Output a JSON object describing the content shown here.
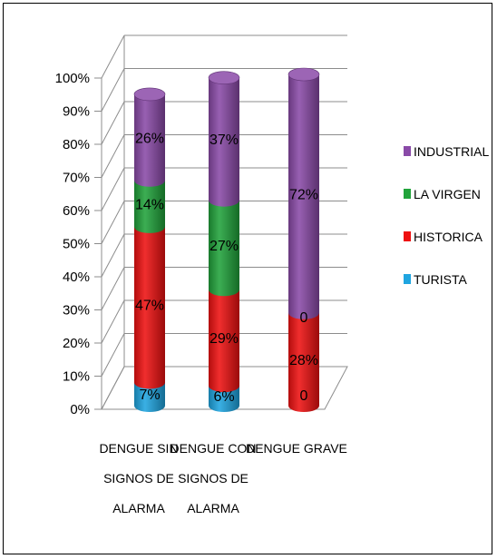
{
  "chart_data": {
    "type": "bar",
    "stacked": true,
    "three_d": true,
    "categories": [
      [
        "DENGUE SIN",
        "SIGNOS DE",
        "ALARMA"
      ],
      [
        "DENGUE CON",
        "SIGNOS DE",
        "ALARMA"
      ],
      [
        "DENGUE GRAVE"
      ]
    ],
    "series": [
      {
        "name": "TURISTA",
        "color": "#1fa5e0",
        "values": [
          7,
          6,
          0
        ],
        "labels": [
          "7%",
          "6%",
          "0"
        ]
      },
      {
        "name": "HISTORICA",
        "color": "#ee1111",
        "values": [
          47,
          29,
          28
        ],
        "labels": [
          "47%",
          "29%",
          "28%"
        ]
      },
      {
        "name": "LA VIRGEN",
        "color": "#21a33b",
        "values": [
          14,
          27,
          0
        ],
        "labels": [
          "14%",
          "27%",
          "0"
        ]
      },
      {
        "name": "INDUSTRIAL",
        "color": "#8a4aa8",
        "values": [
          26,
          37,
          72
        ],
        "labels": [
          "26%",
          "37%",
          "72%"
        ]
      }
    ],
    "legend_order": [
      "INDUSTRIAL",
      "LA VIRGEN",
      "HISTORICA",
      "TURISTA"
    ],
    "yticks": [
      "0%",
      "10%",
      "20%",
      "30%",
      "40%",
      "50%",
      "60%",
      "70%",
      "80%",
      "90%",
      "100%"
    ],
    "ylim": [
      0,
      100
    ],
    "legend_position": "right",
    "grid": true
  }
}
